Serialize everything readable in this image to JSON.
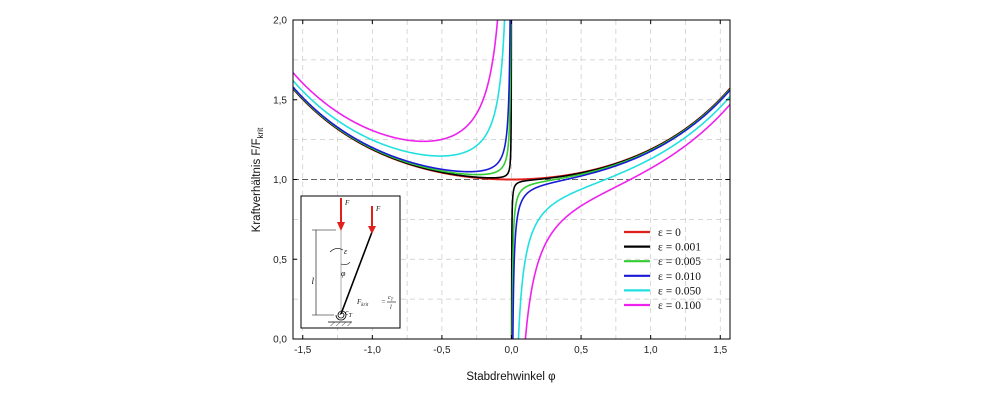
{
  "chart_data": {
    "type": "line",
    "xlabel": "Stabdrehwinkel φ",
    "ylabel": "Kraftverhältnis F/F",
    "ylabel_subscript": "krit",
    "xlim": [
      -1.57,
      1.57
    ],
    "ylim": [
      0.0,
      2.0
    ],
    "x_ticks": [
      "-1,5",
      "-1,0",
      "-0,5",
      "0,0",
      "0,5",
      "1,0",
      "1,5"
    ],
    "x_tick_values": [
      -1.5,
      -1.0,
      -0.5,
      0.0,
      0.5,
      1.0,
      1.5
    ],
    "y_ticks": [
      "0,0",
      "0,5",
      "1,0",
      "1,5",
      "2,0"
    ],
    "y_tick_values": [
      0.0,
      0.5,
      1.0,
      1.5,
      2.0
    ],
    "grid": true,
    "reference_line_y": 1.0,
    "legend_placement": "right",
    "model": "F/F_krit = (φ − ε)/sin φ",
    "series": [
      {
        "name": "ε = 0",
        "epsilon": 0.0,
        "color": "#e0201c"
      },
      {
        "name": "ε = 0.001",
        "epsilon": 0.001,
        "color": "#000000"
      },
      {
        "name": "ε = 0.005",
        "epsilon": 0.005,
        "color": "#33cc33"
      },
      {
        "name": "ε = 0.010",
        "epsilon": 0.01,
        "color": "#1a1ad6"
      },
      {
        "name": "ε = 0.050",
        "epsilon": 0.05,
        "color": "#22e0e0"
      },
      {
        "name": "ε = 0.100",
        "epsilon": 0.1,
        "color": "#ee22ee"
      }
    ]
  },
  "inset": {
    "force_label_1": "F",
    "force_label_2": "F",
    "epsilon_label": "ε",
    "phi_label": "φ",
    "length_label": "l",
    "spring_label": "c",
    "spring_subscript": "T",
    "formula_lhs": "F",
    "formula_lhs_sub": "krit",
    "formula_eq": "=",
    "formula_num": "c",
    "formula_num_sub": "T",
    "formula_den": "l"
  }
}
